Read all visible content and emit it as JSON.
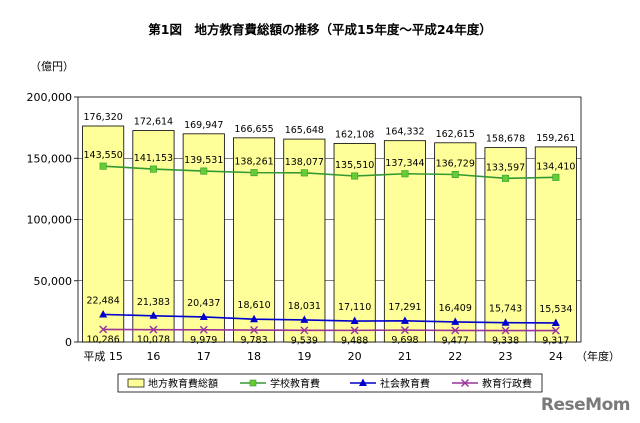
{
  "chart_data": {
    "type": "bar",
    "title": "第1図　地方教育費総額の推移（平成15年度～平成24年度）",
    "ylabel": "（億円）",
    "xlabel": "（年度）",
    "ylim": [
      0,
      200000
    ],
    "yticks": [
      "0",
      "50,000",
      "100,000",
      "150,000",
      "200,000"
    ],
    "categories": [
      "平成 15",
      "16",
      "17",
      "18",
      "19",
      "20",
      "21",
      "22",
      "23",
      "24"
    ],
    "bar_color": "#ffff99",
    "legend_position": "bottom",
    "series": [
      {
        "name": "地方教育費総額",
        "kind": "bar",
        "color": "#ffff99",
        "values": [
          176320,
          172614,
          169947,
          166655,
          165648,
          162108,
          164332,
          162615,
          158678,
          159261
        ],
        "labels": [
          "176,320",
          "172,614",
          "169,947",
          "166,655",
          "165,648",
          "162,108",
          "164,332",
          "162,615",
          "158,678",
          "159,261"
        ]
      },
      {
        "name": "学校教育費",
        "kind": "line",
        "color": "#339933",
        "marker": "square",
        "values": [
          143550,
          141153,
          139531,
          138261,
          138077,
          135510,
          137344,
          136729,
          133597,
          134410
        ],
        "labels": [
          "143,550",
          "141,153",
          "139,531",
          "138,261",
          "138,077",
          "135,510",
          "137,344",
          "136,729",
          "133,597",
          "134,410"
        ]
      },
      {
        "name": "社会教育費",
        "kind": "line",
        "color": "#0000cc",
        "marker": "triangle",
        "values": [
          22484,
          21383,
          20437,
          18610,
          18031,
          17110,
          17291,
          16409,
          15743,
          15534
        ],
        "labels": [
          "22,484",
          "21,383",
          "20,437",
          "18,610",
          "18,031",
          "17,110",
          "17,291",
          "16,409",
          "15,743",
          "15,534"
        ]
      },
      {
        "name": "教育行政費",
        "kind": "line",
        "color": "#993399",
        "marker": "x",
        "values": [
          10286,
          10078,
          9979,
          9783,
          9539,
          9488,
          9698,
          9477,
          9338,
          9317
        ],
        "labels": [
          "10,286",
          "10,078",
          "9,979",
          "9,783",
          "9,539",
          "9,488",
          "9,698",
          "9,477",
          "9,338",
          "9,317"
        ]
      }
    ]
  },
  "watermark": "ReseMom"
}
